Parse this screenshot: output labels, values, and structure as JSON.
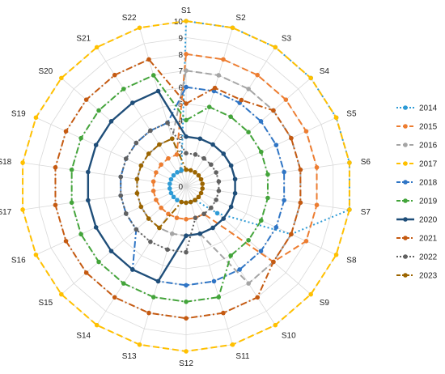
{
  "chart_data": {
    "type": "radar",
    "categories": [
      "S1",
      "S2",
      "S3",
      "S4",
      "S5",
      "S6",
      "S7",
      "S8",
      "S9",
      "S10",
      "S11",
      "S12",
      "S13",
      "S14",
      "S15",
      "S16",
      "S17",
      "S18",
      "S19",
      "S20",
      "S21",
      "S22"
    ],
    "rlim": [
      0,
      10
    ],
    "ticks": [
      "0",
      "1",
      "2",
      "3",
      "4",
      "5",
      "6",
      "7",
      "8",
      "9",
      "10"
    ],
    "grid": true,
    "legend_position": "right",
    "series": [
      {
        "name": "2014",
        "color": "#2e9bd6",
        "dash": "dot",
        "values": [
          10,
          10,
          10,
          10,
          10,
          10,
          10,
          7,
          2.5,
          1,
          1,
          1,
          1,
          1,
          1,
          1,
          1,
          1,
          1,
          1,
          1,
          1
        ]
      },
      {
        "name": "2015",
        "color": "#ed7d31",
        "dash": "dash",
        "values": [
          8,
          8,
          8,
          8,
          8,
          8,
          8,
          8,
          7,
          2,
          2,
          2,
          2,
          2,
          2,
          2,
          2,
          2,
          2,
          2,
          2,
          2
        ]
      },
      {
        "name": "2016",
        "color": "#a5a5a5",
        "dash": "dash",
        "values": [
          7,
          7,
          7,
          7,
          7,
          7,
          7,
          7,
          7,
          7,
          3,
          3,
          3,
          3,
          3,
          3,
          3,
          3,
          3,
          3,
          3,
          3
        ]
      },
      {
        "name": "2017",
        "color": "#ffc000",
        "dash": "dash",
        "values": [
          10,
          10,
          10,
          10,
          10,
          10,
          10,
          10,
          10,
          10,
          10,
          10,
          10,
          10,
          10,
          10,
          10,
          10,
          10,
          10,
          10,
          10
        ]
      },
      {
        "name": "2018",
        "color": "#2f75c5",
        "dash": "dashdot",
        "values": [
          6,
          6,
          6,
          6,
          6,
          6,
          6,
          6,
          6,
          6,
          6,
          6,
          6,
          6,
          4,
          4,
          4,
          4,
          4,
          4,
          4,
          4
        ]
      },
      {
        "name": "2019",
        "color": "#43a43a",
        "dash": "dashdot",
        "values": [
          4,
          5,
          5,
          5,
          5,
          5,
          5,
          5,
          5,
          5,
          7,
          7,
          7,
          7,
          7,
          7,
          7,
          7,
          7,
          7,
          7,
          7
        ]
      },
      {
        "name": "2020",
        "color": "#1f4e79",
        "dash": "solid",
        "values": [
          3,
          3,
          3,
          3,
          3,
          3,
          3,
          3,
          3,
          3,
          3,
          3,
          6,
          6,
          6,
          6,
          6,
          6,
          6,
          6,
          6,
          6
        ]
      },
      {
        "name": "2021",
        "color": "#c55a11",
        "dash": "dashdot",
        "values": [
          5,
          6.2,
          6.2,
          7,
          7,
          7,
          7,
          7,
          7,
          8,
          8,
          8,
          8,
          8,
          8,
          8,
          8,
          8,
          8,
          8,
          8,
          8
        ]
      },
      {
        "name": "2022",
        "color": "#616161",
        "dash": "dot",
        "values": [
          2,
          2,
          2,
          2,
          2,
          2,
          2,
          2,
          2,
          2,
          2,
          4,
          4,
          4,
          4,
          4,
          4,
          4,
          4,
          4,
          4,
          4
        ]
      },
      {
        "name": "2023",
        "color": "#9c6500",
        "dash": "dashdot",
        "values": [
          1,
          1,
          1,
          1,
          1,
          1,
          1,
          1,
          1,
          1,
          1,
          1,
          1,
          3,
          3,
          3,
          3,
          3,
          3,
          3,
          3,
          3
        ]
      }
    ]
  }
}
